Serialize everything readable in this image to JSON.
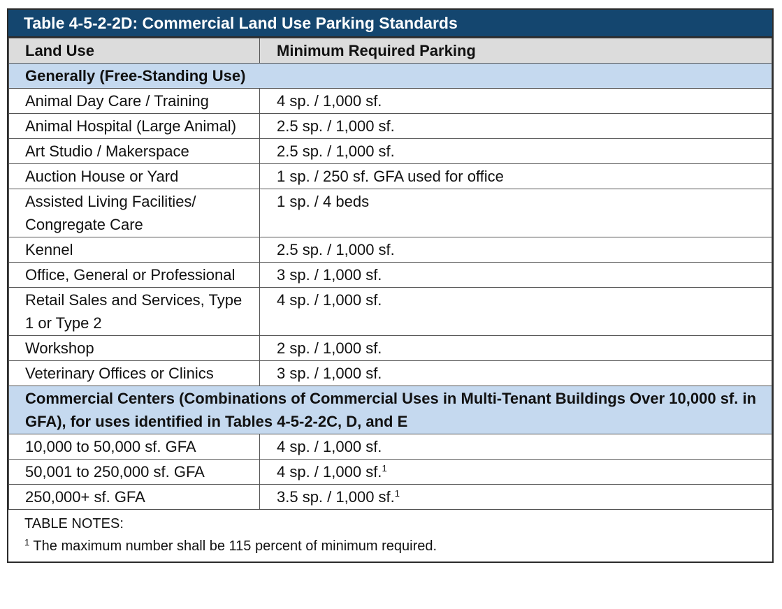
{
  "title": "Table 4-5-2-2D:  Commercial Land Use Parking Standards",
  "headers": {
    "land_use": "Land Use",
    "parking": "Minimum Required Parking"
  },
  "section1": {
    "label": "Generally (Free-Standing Use)",
    "rows": [
      {
        "use": "Animal Day Care / Training",
        "parking": "4 sp. / 1,000 sf."
      },
      {
        "use": "Animal Hospital (Large Animal)",
        "parking": "2.5 sp. / 1,000 sf."
      },
      {
        "use": "Art Studio / Makerspace",
        "parking": "2.5 sp. / 1,000 sf."
      },
      {
        "use": "Auction House or Yard",
        "parking": "1 sp. / 250 sf. GFA used for office"
      },
      {
        "use": "Assisted Living Facilities/ Congregate Care",
        "parking": "1 sp. / 4 beds"
      },
      {
        "use": "Kennel",
        "parking": "2.5 sp. / 1,000 sf."
      },
      {
        "use": "Office, General or Professional",
        "parking": "3 sp. / 1,000 sf."
      },
      {
        "use": "Retail Sales and Services, Type 1 or Type 2",
        "parking": "4 sp. / 1,000 sf."
      },
      {
        "use": "Workshop",
        "parking": "2 sp. / 1,000 sf."
      },
      {
        "use": "Veterinary Offices or Clinics",
        "parking": "3 sp. / 1,000 sf."
      }
    ]
  },
  "section2": {
    "label": "Commercial Centers (Combinations of Commercial Uses in Multi-Tenant Buildings Over 10,000 sf. in GFA), for uses identified in Tables 4-5-2-2C, D, and E",
    "rows": [
      {
        "use": "10,000 to 50,000 sf. GFA",
        "parking": "4 sp. / 1,000 sf.",
        "note": ""
      },
      {
        "use": "50,001 to 250,000 sf. GFA",
        "parking": "4 sp. / 1,000 sf.",
        "note": "1"
      },
      {
        "use": "250,000+ sf. GFA",
        "parking": "3.5 sp. / 1,000 sf.",
        "note": "1"
      }
    ]
  },
  "notes": {
    "heading": "TABLE NOTES:",
    "items": [
      {
        "marker": "1",
        "text": " The maximum number shall be 115 percent of minimum required."
      }
    ]
  },
  "colors": {
    "title_bg": "#14466f",
    "header_bg": "#dcdcdc",
    "section_bg": "#c5d9ef"
  }
}
